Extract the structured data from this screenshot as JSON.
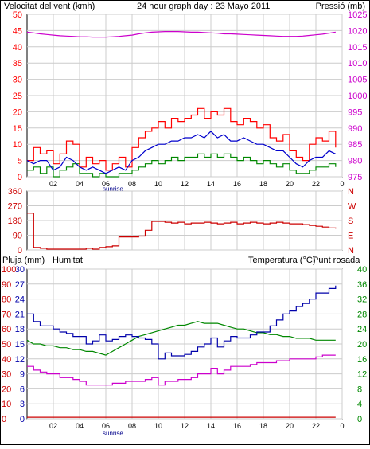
{
  "colors": {
    "wind_gust": "#ff0000",
    "wind_avg": "#0000cc",
    "wind_dir": "#cc0000",
    "pressure": "#cc00cc",
    "rain": "#cc0000",
    "humidity": "#0000aa",
    "temperature": "#008800",
    "dewpoint": "#cc00cc",
    "grid": "#cccccc"
  },
  "chart_data": [
    {
      "type": "line",
      "title": "24 hour graph day : 23 Mayo 2011",
      "ylabel_left": "Velocitat del vent (kmh)",
      "ylabel_right": "Pressió (mb)",
      "ylim_left": [
        0,
        50
      ],
      "ylim_right": [
        975,
        1025
      ],
      "yticks_left": [
        "0",
        "5",
        "10",
        "15",
        "20",
        "25",
        "30",
        "35",
        "40",
        "45",
        "50"
      ],
      "yticks_right": [
        "975",
        "980",
        "985",
        "990",
        "995",
        "1000",
        "1005",
        "1010",
        "1015",
        "1020",
        "1025"
      ],
      "xticks": [
        "02",
        "04",
        "06",
        "08",
        "10",
        "12",
        "14",
        "16",
        "18",
        "20",
        "22",
        "0"
      ],
      "annotation": "sunrise",
      "x_hours": [
        0,
        0.5,
        1,
        1.5,
        2,
        2.5,
        3,
        3.5,
        4,
        4.5,
        5,
        5.5,
        6,
        6.5,
        7,
        7.5,
        8,
        8.5,
        9,
        9.5,
        10,
        10.5,
        11,
        11.5,
        12,
        12.5,
        13,
        13.5,
        14,
        14.5,
        15,
        15.5,
        16,
        16.5,
        17,
        17.5,
        18,
        18.5,
        19,
        19.5,
        20,
        20.5,
        21,
        21.5,
        22,
        22.5,
        23,
        23.5
      ],
      "series": [
        {
          "name": "gust",
          "axis": "left",
          "values": [
            5,
            9,
            7,
            8,
            4,
            7,
            11,
            10,
            3,
            6,
            4,
            5,
            2,
            4,
            6,
            3,
            9,
            12,
            14,
            15,
            17,
            15,
            18,
            17,
            18,
            19,
            21,
            18,
            20,
            19,
            21,
            17,
            16,
            18,
            17,
            15,
            16,
            12,
            11,
            13,
            8,
            6,
            5,
            10,
            12,
            11,
            14,
            9
          ]
        },
        {
          "name": "average",
          "axis": "left",
          "values": [
            5,
            4,
            5,
            5,
            2,
            3,
            6,
            5,
            3,
            2,
            3,
            2,
            1,
            2,
            3,
            2,
            5,
            6,
            8,
            9,
            10,
            10,
            11,
            11,
            12,
            12,
            13,
            12,
            14,
            12,
            13,
            11,
            11,
            12,
            11,
            10,
            10,
            9,
            8,
            8,
            6,
            4,
            3,
            5,
            6,
            6,
            8,
            7
          ]
        },
        {
          "name": "minimum",
          "axis": "left",
          "values": [
            2,
            3,
            1,
            3,
            0,
            2,
            3,
            4,
            1,
            1,
            0,
            1,
            0,
            0,
            1,
            1,
            2,
            3,
            4,
            5,
            4,
            5,
            6,
            5,
            6,
            6,
            7,
            6,
            7,
            6,
            7,
            6,
            5,
            6,
            5,
            4,
            5,
            4,
            3,
            4,
            2,
            1,
            1,
            2,
            3,
            3,
            4,
            3
          ]
        },
        {
          "name": "pressure",
          "axis": "right",
          "values": [
            1019.5,
            1019.3,
            1019.0,
            1018.8,
            1018.6,
            1018.4,
            1018.3,
            1018.2,
            1018.1,
            1018.1,
            1018.0,
            1018.0,
            1018.0,
            1018.1,
            1018.2,
            1018.4,
            1018.6,
            1019.0,
            1019.3,
            1019.5,
            1019.6,
            1019.7,
            1019.7,
            1019.7,
            1019.6,
            1019.5,
            1019.5,
            1019.4,
            1019.3,
            1019.2,
            1019.0,
            1019.0,
            1018.9,
            1018.8,
            1018.7,
            1018.6,
            1018.5,
            1018.4,
            1018.3,
            1018.2,
            1018.2,
            1018.2,
            1018.3,
            1018.5,
            1018.7,
            1018.9,
            1019.2,
            1019.5
          ]
        }
      ]
    },
    {
      "type": "line",
      "ylabel_right": "N W S E N",
      "yticks_left": [
        "0",
        "90",
        "180",
        "270",
        "360"
      ],
      "ylim": [
        0,
        360
      ],
      "right_letters": [
        "N",
        "W",
        "S",
        "E",
        "N"
      ],
      "x_hours": [
        0,
        0.5,
        1,
        1.5,
        2,
        2.5,
        3,
        3.5,
        4,
        4.5,
        5,
        5.5,
        6,
        6.5,
        7,
        7.5,
        8,
        8.5,
        9,
        9.5,
        10,
        10.5,
        11,
        11.5,
        12,
        12.5,
        13,
        13.5,
        14,
        14.5,
        15,
        15.5,
        16,
        16.5,
        17,
        17.5,
        18,
        18.5,
        19,
        19.5,
        20,
        20.5,
        21,
        21.5,
        22,
        22.5,
        23,
        23.5
      ],
      "series": [
        {
          "name": "wind direction",
          "values": [
            225,
            15,
            10,
            5,
            5,
            5,
            5,
            5,
            5,
            10,
            5,
            15,
            20,
            25,
            80,
            80,
            80,
            85,
            120,
            175,
            175,
            170,
            165,
            170,
            160,
            165,
            165,
            170,
            165,
            160,
            165,
            170,
            160,
            165,
            170,
            165,
            160,
            165,
            170,
            165,
            160,
            160,
            155,
            150,
            145,
            140,
            135,
            130
          ]
        }
      ]
    },
    {
      "type": "line",
      "ylabel_left_1": "Pluja (mm)",
      "ylabel_left_2": "Humitat",
      "ylabel_right": "Temperatura (°C)",
      "ylabel_right_2": "Punt rosada",
      "yticks_rain": [
        "0",
        "3",
        "6",
        "9",
        "12",
        "15",
        "18",
        "21",
        "24",
        "27",
        "30"
      ],
      "yticks_humidity": [
        "0",
        "10",
        "20",
        "30",
        "40",
        "50",
        "60",
        "70",
        "80",
        "90",
        "100"
      ],
      "yticks_temp": [
        "0",
        "4",
        "8",
        "12",
        "16",
        "20",
        "24",
        "28",
        "32",
        "36",
        "40"
      ],
      "ylim_rain": [
        0,
        30
      ],
      "ylim_humidity": [
        0,
        100
      ],
      "ylim_temp": [
        0,
        40
      ],
      "x_hours": [
        0,
        0.5,
        1,
        1.5,
        2,
        2.5,
        3,
        3.5,
        4,
        4.5,
        5,
        5.5,
        6,
        6.5,
        7,
        7.5,
        8,
        8.5,
        9,
        9.5,
        10,
        10.5,
        11,
        11.5,
        12,
        12.5,
        13,
        13.5,
        14,
        14.5,
        15,
        15.5,
        16,
        16.5,
        17,
        17.5,
        18,
        18.5,
        19,
        19.5,
        20,
        20.5,
        21,
        21.5,
        22,
        22.5,
        23,
        23.5
      ],
      "series": [
        {
          "name": "Pluja",
          "axis": "humidity",
          "values": [
            1,
            1,
            1,
            1,
            1,
            1,
            1,
            1,
            1,
            1,
            1,
            1,
            1,
            1,
            1,
            1,
            1,
            1,
            1,
            1,
            1,
            1,
            1,
            1,
            1,
            1,
            1,
            1,
            1,
            1,
            1,
            1,
            1,
            1,
            1,
            1,
            1,
            1,
            1,
            1,
            1,
            1,
            1,
            1,
            1,
            1,
            1,
            1
          ]
        },
        {
          "name": "Humitat",
          "axis": "humidity",
          "values": [
            70,
            65,
            62,
            62,
            60,
            58,
            57,
            55,
            55,
            50,
            52,
            56,
            52,
            53,
            55,
            56,
            55,
            54,
            53,
            50,
            40,
            44,
            42,
            42,
            43,
            45,
            48,
            50,
            54,
            48,
            52,
            55,
            54,
            54,
            56,
            58,
            58,
            62,
            66,
            70,
            72,
            75,
            77,
            80,
            84,
            84,
            87,
            89
          ]
        },
        {
          "name": "Temperatura",
          "axis": "temp",
          "values": [
            21,
            20,
            20,
            19.5,
            19.5,
            19,
            19,
            18.5,
            18.5,
            18,
            18,
            17.5,
            17,
            18,
            19,
            20,
            21,
            22,
            22.5,
            23,
            23.5,
            24,
            24.5,
            25,
            25,
            25.5,
            26,
            25.5,
            25.5,
            25.5,
            25,
            24.5,
            24,
            24,
            23.5,
            23,
            23,
            22.5,
            22.5,
            22,
            22,
            21.5,
            21.5,
            21.5,
            21,
            21,
            21,
            21
          ]
        },
        {
          "name": "Punt rosada",
          "axis": "temp",
          "values": [
            14,
            13,
            12.5,
            12,
            12,
            11,
            11,
            10.5,
            10,
            9,
            9,
            9,
            9,
            9.5,
            9.5,
            10,
            10,
            10,
            10.5,
            11,
            9,
            10,
            10,
            10.5,
            10.5,
            11,
            12,
            12,
            13.5,
            12,
            13,
            14,
            14,
            14,
            14.5,
            15,
            15,
            15,
            15.5,
            15.5,
            16,
            16,
            16,
            16,
            16.5,
            17,
            17,
            17
          ]
        }
      ]
    }
  ]
}
